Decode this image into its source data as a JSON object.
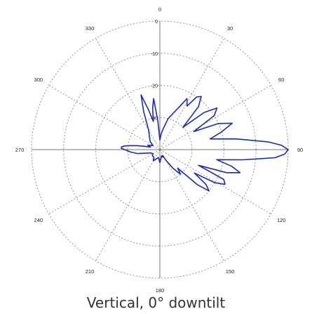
{
  "chart_data": {
    "type": "polar",
    "title": "Vertical, 0° downtilt",
    "angle_unit": "degrees",
    "angle_ticks": [
      0,
      30,
      60,
      90,
      120,
      150,
      180,
      210,
      240,
      270,
      300,
      330
    ],
    "angle_labels": [
      "0",
      "30",
      "60",
      "90",
      "120",
      "150",
      "180",
      "210",
      "240",
      "270",
      "300",
      "330"
    ],
    "radial_unit": "dB",
    "radial_ticks": [
      0,
      -10,
      -20,
      -30
    ],
    "radial_labels": [
      "0",
      "-10",
      "-20",
      "-30"
    ],
    "radial_range": [
      -40,
      0
    ],
    "grid": true,
    "series": [
      {
        "color": "#1a2bb8",
        "angles": [
          0,
          5,
          10,
          15,
          20,
          25,
          28,
          32,
          35,
          38,
          42,
          46,
          50,
          54,
          58,
          62,
          66,
          70,
          74,
          78,
          82,
          86,
          88,
          90,
          92,
          94,
          97,
          100,
          103,
          106,
          109,
          112,
          115,
          118,
          121,
          124,
          127,
          130,
          133,
          136,
          140,
          145,
          150,
          155,
          160,
          165,
          170,
          175,
          180,
          190,
          200,
          210,
          220,
          230,
          240,
          250,
          260,
          265,
          270,
          272,
          274,
          276,
          278,
          280,
          282,
          285,
          290,
          295,
          300,
          305,
          310,
          320,
          330,
          337,
          341,
          344,
          347,
          350,
          353,
          356,
          360
        ],
        "values": [
          -37,
          -35,
          -33,
          -30,
          -28,
          -25,
          -22,
          -24,
          -20,
          -19,
          -22,
          -30,
          -22,
          -18,
          -20,
          -28,
          -20,
          -16,
          -20,
          -24,
          -16,
          -6,
          -2,
          0,
          -1,
          -4,
          -14,
          -22,
          -17,
          -14,
          -18,
          -27,
          -18,
          -17,
          -20,
          -27,
          -22,
          -20,
          -24,
          -32,
          -30,
          -33,
          -36,
          -38,
          -37.5,
          -38,
          -37.5,
          -37,
          -36,
          -37.5,
          -37,
          -36,
          -37,
          -37,
          -37.5,
          -37,
          -33,
          -31,
          -29,
          -28,
          -28,
          -29,
          -31,
          -33,
          -35,
          -37,
          -36,
          -37,
          -37.5,
          -37,
          -36,
          -35,
          -33,
          -27,
          -22,
          -27,
          -31,
          -27,
          -24,
          -31,
          -37
        ]
      }
    ]
  }
}
